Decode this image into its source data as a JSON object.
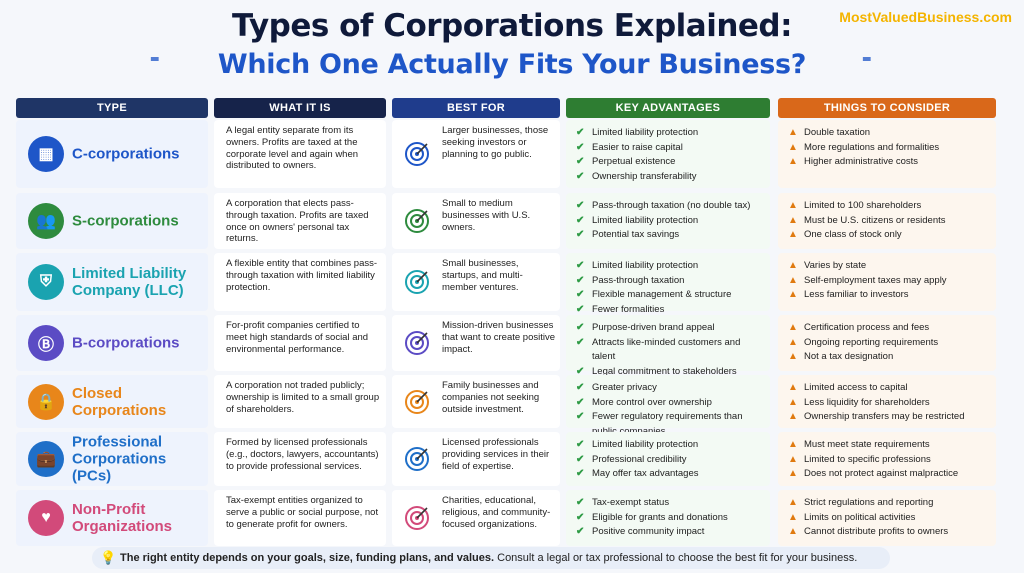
{
  "brand": "MostValuedBusiness.com",
  "title": "Types of Corporations Explained:",
  "subtitle": "Which One Actually Fits Your Business?",
  "headers": {
    "type": "TYPE",
    "what": "WHAT IT IS",
    "best": "BEST FOR",
    "adv": "KEY ADVANTAGES",
    "con": "THINGS TO CONSIDER"
  },
  "colors": {
    "type_header": "#1f3566",
    "what_header": "#16234a",
    "best_header": "#1f3c8c",
    "adv_header": "#2e7d32",
    "con_header": "#d9681a"
  },
  "rows": [
    {
      "name": "C-corporations",
      "icon": "building-icon",
      "color": "#1e56c8",
      "what": "A legal entity separate from its owners. Profits are taxed at the corporate level and again when distributed to owners.",
      "best": "Larger businesses, those seeking investors or planning to go public.",
      "adv": [
        "Limited liability protection",
        "Easier to raise capital",
        "Perpetual existence",
        "Ownership transferability"
      ],
      "con": [
        "Double taxation",
        "More regulations and formalities",
        "Higher administrative costs"
      ]
    },
    {
      "name": "S-corporations",
      "icon": "people-icon",
      "color": "#2e8b3e",
      "what": "A corporation that elects pass-through taxation. Profits are taxed once on owners' personal tax returns.",
      "best": "Small to medium businesses with U.S. owners.",
      "adv": [
        "Pass-through taxation (no double tax)",
        "Limited liability protection",
        "Potential tax savings"
      ],
      "con": [
        "Limited to 100 shareholders",
        "Must be U.S. citizens or residents",
        "One class of stock only"
      ]
    },
    {
      "name": "Limited Liability Company (LLC)",
      "icon": "shield-icon",
      "color": "#1aa3b0",
      "what": "A flexible entity that combines pass-through taxation with limited liability protection.",
      "best": "Small businesses, startups, and multi-member ventures.",
      "adv": [
        "Limited liability protection",
        "Pass-through taxation",
        "Flexible management & structure",
        "Fewer formalities"
      ],
      "con": [
        "Varies by state",
        "Self-employment taxes may apply",
        "Less familiar to investors"
      ]
    },
    {
      "name": "B-corporations",
      "icon": "b-badge-icon",
      "color": "#5b4bc4",
      "what": "For-profit companies certified to meet high standards of social and environmental performance.",
      "best": "Mission-driven businesses that want to create positive impact.",
      "adv": [
        "Purpose-driven brand appeal",
        "Attracts like-minded customers and talent",
        "Legal commitment to stakeholders"
      ],
      "con": [
        "Certification process and fees",
        "Ongoing reporting requirements",
        "Not a tax designation"
      ]
    },
    {
      "name": "Closed Corporations",
      "icon": "lock-icon",
      "color": "#e8861a",
      "what": "A corporation not traded publicly; ownership is limited to a small group of shareholders.",
      "best": "Family businesses and companies not seeking outside investment.",
      "adv": [
        "Greater privacy",
        "More control over ownership",
        "Fewer regulatory requirements than public companies"
      ],
      "con": [
        "Limited access to capital",
        "Less liquidity for shareholders",
        "Ownership transfers may be restricted"
      ]
    },
    {
      "name": "Professional Corporations (PCs)",
      "icon": "briefcase-icon",
      "color": "#1f6fc8",
      "what": "Formed by licensed professionals (e.g., doctors, lawyers, accountants) to provide professional services.",
      "best": "Licensed professionals providing services in their field of expertise.",
      "adv": [
        "Limited liability protection",
        "Professional credibility",
        "May offer tax advantages"
      ],
      "con": [
        "Must meet state requirements",
        "Limited to specific professions",
        "Does not protect against malpractice"
      ]
    },
    {
      "name": "Non-Profit Organizations",
      "icon": "heart-hands-icon",
      "color": "#d24a7a",
      "what": "Tax-exempt entities organized to serve a public or social purpose, not to generate profit for owners.",
      "best": "Charities, educational, religious, and community-focused organizations.",
      "adv": [
        "Tax-exempt status",
        "Eligible for grants and donations",
        "Positive community impact"
      ],
      "con": [
        "Strict regulations and reporting",
        "Limits on political activities",
        "Cannot distribute profits to owners"
      ]
    }
  ],
  "footer": {
    "bold": "The right entity depends on your goals, size, funding plans, and values.",
    "rest": " Consult a legal or tax professional to choose the best fit for your business."
  }
}
